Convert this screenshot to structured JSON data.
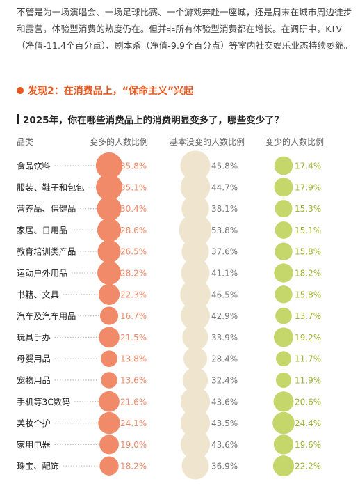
{
  "intro_text": "不管是为一场演唱会、一场足球比赛、一个游戏奔赴一座城，还是周末在城市周边徒步和露营，体验型消费的热度仍在。但并非所有体验型消费都在增长。在调研中，KTV（净值-11.4个百分点）、剧本杀（净值-9.9个百分点）等室内社交娱乐业态持续萎缩。",
  "section_heading": "发现2：在消费品上，“保命主义”兴起",
  "colors": {
    "accent": "#e8581f",
    "more": "#f08a68",
    "same": "#efe5cf",
    "less": "#c5d76a",
    "dots": "#b5b5b5"
  },
  "chart_data": {
    "type": "table",
    "title": "2025年，你在哪些消费品上的消费明显变多了，哪些变少了？",
    "column_headers": [
      "品类",
      "变多的人数比例",
      "基本没变的人数比例",
      "变少的人数比例"
    ],
    "categories": [
      "食品饮料",
      "服装、鞋子和包包",
      "营养品、保健品",
      "家居、日用品",
      "教育培训类产品",
      "运动户外用品",
      "书籍、文具",
      "汽车及汽车用品",
      "玩具手办",
      "母婴用品",
      "宠物用品",
      "手机等3C数码",
      "美妆个护",
      "家用电器",
      "珠宝、配饰"
    ],
    "series": [
      {
        "name": "变多的人数比例",
        "values": [
          35.8,
          35.1,
          30.4,
          28.6,
          26.5,
          28.2,
          22.3,
          16.7,
          21.5,
          13.8,
          13.6,
          21.6,
          24.1,
          19.0,
          18.2
        ]
      },
      {
        "name": "基本没变的人数比例",
        "values": [
          45.8,
          44.7,
          38.1,
          53.8,
          37.6,
          41.1,
          46.5,
          42.9,
          33.9,
          28.4,
          32.4,
          43.6,
          43.5,
          43.6,
          36.9
        ]
      },
      {
        "name": "变少的人数比例",
        "values": [
          17.4,
          17.9,
          15.3,
          15.1,
          15.8,
          18.2,
          15.8,
          13.7,
          19.2,
          11.7,
          11.9,
          20.6,
          24.4,
          19.6,
          22.2
        ]
      }
    ],
    "value_format": "%"
  }
}
